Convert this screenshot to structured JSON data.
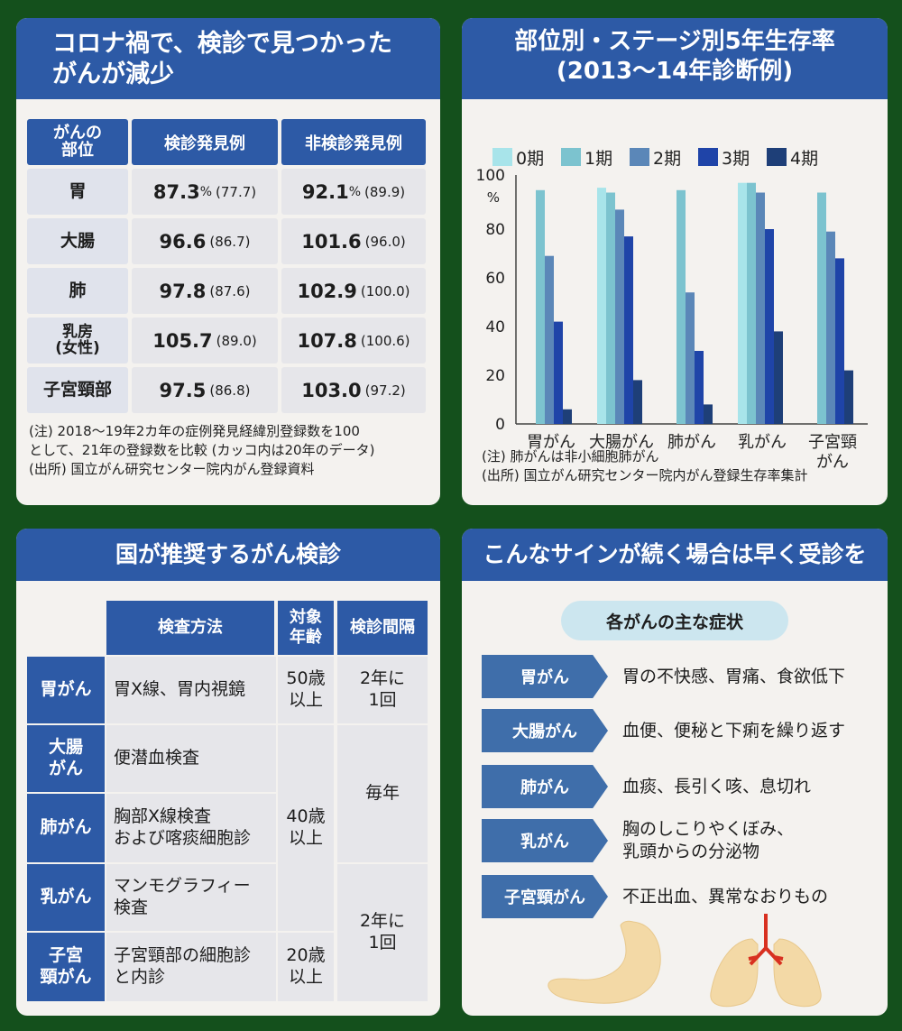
{
  "panel1": {
    "title_line1": "コロナ禍で、検診で見つかった",
    "title_line2": "がんが減少",
    "headers": [
      "がんの\n部位",
      "検診発見例",
      "非検診発見例"
    ],
    "rows": [
      {
        "site": "胃",
        "screen": "87.3",
        "screen_unit": "%",
        "screen_prev": "(77.7)",
        "non": "92.1",
        "non_unit": "%",
        "non_prev": "(89.9)"
      },
      {
        "site": "大腸",
        "screen": "96.6",
        "screen_unit": "",
        "screen_prev": "(86.7)",
        "non": "101.6",
        "non_unit": "",
        "non_prev": "(96.0)"
      },
      {
        "site": "肺",
        "screen": "97.8",
        "screen_unit": "",
        "screen_prev": "(87.6)",
        "non": "102.9",
        "non_unit": "",
        "non_prev": "(100.0)"
      },
      {
        "site": "乳房\n(女性)",
        "screen": "105.7",
        "screen_unit": "",
        "screen_prev": "(89.0)",
        "non": "107.8",
        "non_unit": "",
        "non_prev": "(100.6)"
      },
      {
        "site": "子宮頸部",
        "screen": "97.5",
        "screen_unit": "",
        "screen_prev": "(86.8)",
        "non": "103.0",
        "non_unit": "",
        "non_prev": "(97.2)"
      }
    ],
    "note1": "(注) 2018〜19年2カ年の症例発見経緯別登録数を100",
    "note2": "として、21年の登録数を比較 (カッコ内は20年のデータ)",
    "note3": "(出所) 国立がん研究センター院内がん登録資料"
  },
  "panel2": {
    "title_line1": "部位別・ステージ別5年生存率",
    "title_line2": "(2013〜14年診断例)",
    "note1": "(注) 肺がんは非小細胞肺がん",
    "note2": "(出所) 国立がん研究センター院内がん登録生存率集計"
  },
  "chart_data": {
    "type": "bar",
    "categories": [
      "胃がん",
      "大腸がん",
      "肺がん",
      "乳がん",
      "子宮頸\nがん"
    ],
    "series": [
      {
        "name": "0期",
        "color": "#a8e4ea",
        "values": [
          null,
          97,
          null,
          99,
          null
        ]
      },
      {
        "name": "1期",
        "color": "#7cc3cf",
        "values": [
          96,
          95,
          96,
          99,
          95
        ]
      },
      {
        "name": "2期",
        "color": "#5b87b8",
        "values": [
          69,
          88,
          54,
          95,
          79
        ]
      },
      {
        "name": "3期",
        "color": "#1f44a8",
        "values": [
          42,
          77,
          30,
          80,
          68
        ]
      },
      {
        "name": "4期",
        "color": "#1e3f78",
        "values": [
          6,
          18,
          8,
          38,
          22
        ]
      }
    ],
    "ylim": [
      0,
      100
    ],
    "yticks": [
      "0",
      "20",
      "40",
      "60",
      "80",
      "100"
    ],
    "yunit": "%"
  },
  "panel3": {
    "title": "国が推奨するがん検診",
    "headers": [
      "検査方法",
      "対象\n年齢",
      "検診間隔"
    ],
    "rows": [
      {
        "name": "胃がん",
        "method": "胃X線、胃内視鏡"
      },
      {
        "name": "大腸\nがん",
        "method": "便潜血検査"
      },
      {
        "name": "肺がん",
        "method": "胸部X線検査\nおよび喀痰細胞診"
      },
      {
        "name": "乳がん",
        "method": "マンモグラフィー\n検査"
      },
      {
        "name": "子宮\n頸がん",
        "method": "子宮頸部の細胞診\nと内診"
      }
    ],
    "ages": [
      "50歳\n以上",
      "40歳\n以上",
      "20歳\n以上"
    ],
    "intervals": [
      "2年に\n1回",
      "毎年",
      "2年に\n1回"
    ]
  },
  "panel4": {
    "title": "こんなサインが続く場合は早く受診を",
    "subtitle": "各がんの主な症状",
    "items": [
      {
        "name": "胃がん",
        "symptom": "胃の不快感、胃痛、食欲低下"
      },
      {
        "name": "大腸がん",
        "symptom": "血便、便秘と下痢を繰り返す"
      },
      {
        "name": "肺がん",
        "symptom": "血痰、長引く咳、息切れ"
      },
      {
        "name": "乳がん",
        "symptom": "胸のしこりやくぼみ、\n乳頭からの分泌物"
      },
      {
        "name": "子宮頸がん",
        "symptom": "不正出血、異常なおりもの"
      }
    ]
  }
}
